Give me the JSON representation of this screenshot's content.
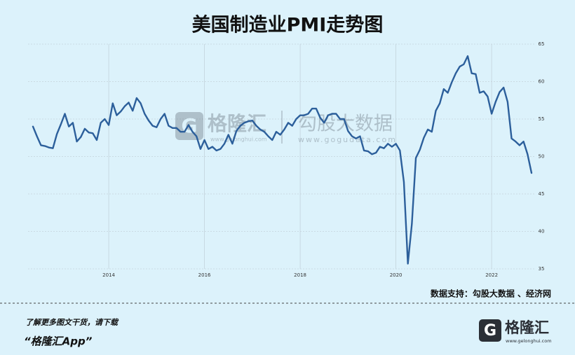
{
  "chart_data": {
    "type": "line",
    "title": "美国制造业PMI走势图",
    "categories": [
      null,
      null,
      null,
      null,
      null,
      null,
      null,
      null,
      null,
      null,
      null,
      null,
      null,
      null,
      null,
      null,
      null,
      null,
      null,
      "2014",
      null,
      null,
      null,
      null,
      null,
      null,
      null,
      null,
      null,
      null,
      null,
      null,
      null,
      null,
      null,
      null,
      null,
      null,
      null,
      null,
      null,
      null,
      null,
      "2016",
      null,
      null,
      null,
      null,
      null,
      null,
      null,
      null,
      null,
      null,
      null,
      null,
      null,
      null,
      null,
      null,
      null,
      null,
      null,
      null,
      null,
      null,
      null,
      "2018",
      null,
      null,
      null,
      null,
      null,
      null,
      null,
      null,
      null,
      null,
      null,
      null,
      null,
      null,
      null,
      null,
      null,
      null,
      null,
      null,
      null,
      null,
      null,
      "2020",
      null,
      null,
      null,
      null,
      null,
      null,
      null,
      null,
      null,
      null,
      null,
      null,
      null,
      null,
      null,
      null,
      null,
      null,
      null,
      null,
      null,
      null,
      null,
      "2022",
      null,
      null,
      null,
      null,
      null,
      null,
      null,
      null,
      null,
      null
    ],
    "series": [
      {
        "color": "#2c5f9b",
        "values": [
          54.0,
          52.7,
          51.5,
          51.4,
          51.2,
          51.1,
          53.0,
          54.3,
          55.7,
          54.0,
          54.5,
          52.0,
          52.6,
          53.7,
          53.2,
          53.1,
          52.2,
          54.5,
          55.0,
          54.2,
          57.1,
          55.5,
          56.0,
          56.7,
          57.2,
          56.1,
          57.8,
          57.1,
          55.7,
          54.8,
          54.1,
          53.9,
          55.0,
          55.7,
          54.1,
          53.8,
          53.8,
          53.3,
          53.3,
          54.2,
          53.3,
          52.7,
          51.0,
          52.2,
          51.0,
          51.3,
          50.8,
          51.0,
          51.7,
          52.9,
          51.7,
          53.4,
          54.1,
          54.5,
          54.7,
          54.8,
          54.1,
          53.6,
          53.3,
          52.7,
          52.2,
          53.3,
          52.9,
          53.6,
          54.5,
          54.1,
          55.0,
          55.5,
          55.5,
          55.7,
          56.4,
          56.4,
          55.2,
          54.5,
          55.5,
          55.7,
          55.7,
          55.0,
          55.0,
          53.4,
          52.7,
          52.4,
          52.7,
          50.8,
          50.7,
          50.3,
          50.5,
          51.3,
          51.1,
          51.7,
          51.3,
          51.7,
          50.8,
          46.6,
          35.7,
          41.0,
          49.8,
          50.9,
          52.5,
          53.6,
          53.3,
          56.1,
          57.1,
          59.0,
          58.5,
          59.9,
          61.1,
          62.0,
          62.3,
          63.4,
          61.1,
          61.0,
          58.5,
          58.7,
          58.0,
          55.7,
          57.3,
          58.6,
          59.2,
          57.3,
          52.4,
          52.0,
          51.5,
          52.0,
          50.3,
          47.8
        ]
      }
    ],
    "ylim": [
      35,
      65
    ],
    "yticks": [
      35,
      40,
      45,
      50,
      55,
      60,
      65
    ],
    "grid": true
  },
  "watermark": {
    "brand": "格隆汇",
    "brand_url": "www.gelonghui.com",
    "data": "勾股大数据",
    "data_url": "www.gogudata.com"
  },
  "source": "数据支持：勾股大数据 、经济网",
  "footer": {
    "cta": "了解更多图文干货，请下载",
    "app": "“格隆汇App”"
  },
  "logo": {
    "name": "格隆汇",
    "url": "www.gelonghui.com"
  }
}
